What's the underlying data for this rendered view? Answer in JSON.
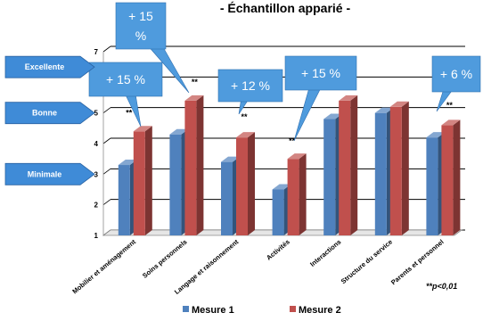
{
  "chart_data": {
    "type": "bar",
    "title": "- Échantillon apparié -",
    "categories": [
      "Mobilier et aménagement",
      "Soins personnels",
      "Langage et raisonnement",
      "Activités",
      "Interactions",
      "Structure du service",
      "Parents et personnel"
    ],
    "series": [
      {
        "name": "Mesure 1",
        "values": [
          3.3,
          4.3,
          3.4,
          2.5,
          4.8,
          5.0,
          4.2
        ],
        "color": "#4F81BD"
      },
      {
        "name": "Mesure 2",
        "values": [
          4.4,
          5.4,
          4.2,
          3.5,
          5.4,
          5.2,
          4.6
        ],
        "color": "#C0504D"
      }
    ],
    "ylim": [
      1,
      7
    ],
    "yticks": [
      "1",
      "2",
      "3",
      "4",
      "5",
      "6",
      "7"
    ],
    "grid": true,
    "legend_position": "bottom",
    "significance_marks": [
      "**",
      "**",
      "**",
      "",
      "",
      "",
      "**"
    ],
    "callouts": [
      "+ 15 %",
      "+ 15 %",
      "+ 12 %",
      "+ 15 %",
      "+ 6 %"
    ],
    "level_arrows": [
      {
        "label": "Excellente",
        "value": 6.5
      },
      {
        "label": "Bonne",
        "value": 5.0
      },
      {
        "label": "Minimale",
        "value": 3.0
      }
    ],
    "note": "**p<0,01"
  }
}
